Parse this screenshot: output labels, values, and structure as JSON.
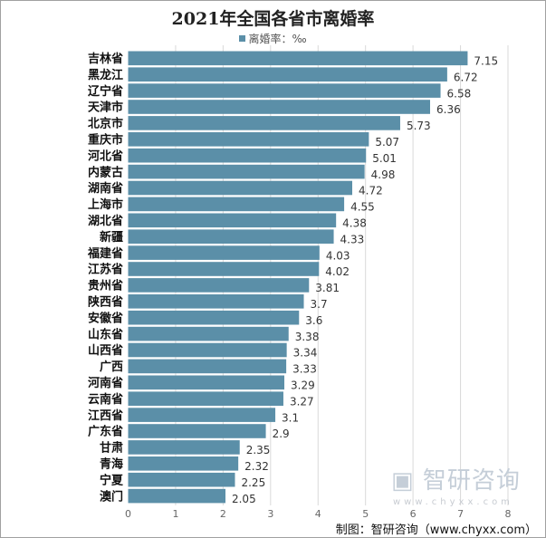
{
  "chart_data": {
    "type": "bar",
    "orientation": "horizontal",
    "title": "2021年全国各省市离婚率",
    "legend": {
      "label": "离婚率：‰",
      "position": "top"
    },
    "categories": [
      "吉林省",
      "黑龙江",
      "辽宁省",
      "天津市",
      "北京市",
      "重庆市",
      "河北省",
      "内蒙古",
      "湖南省",
      "上海市",
      "湖北省",
      "新疆",
      "福建省",
      "江苏省",
      "贵州省",
      "陕西省",
      "安徽省",
      "山东省",
      "山西省",
      "广西",
      "河南省",
      "云南省",
      "江西省",
      "广东省",
      "甘肃",
      "青海",
      "宁夏",
      "澳门"
    ],
    "series": [
      {
        "name": "离婚率：‰",
        "values": [
          7.15,
          6.72,
          6.58,
          6.36,
          5.73,
          5.07,
          5.01,
          4.98,
          4.72,
          4.55,
          4.38,
          4.33,
          4.03,
          4.02,
          3.81,
          3.7,
          3.6,
          3.38,
          3.34,
          3.33,
          3.29,
          3.27,
          3.1,
          2.9,
          2.35,
          2.32,
          2.25,
          2.05
        ]
      }
    ],
    "xlim": [
      0,
      8
    ],
    "xticks": [
      "0",
      "1",
      "2",
      "3",
      "4",
      "5",
      "6",
      "7",
      "8"
    ],
    "grid": true,
    "bar_color": "#5b8fa8"
  },
  "watermark": {
    "brand": "智研咨询",
    "url": "www.chyxx.com"
  },
  "credit": "制图：智研咨询（www.chyxx.com）"
}
